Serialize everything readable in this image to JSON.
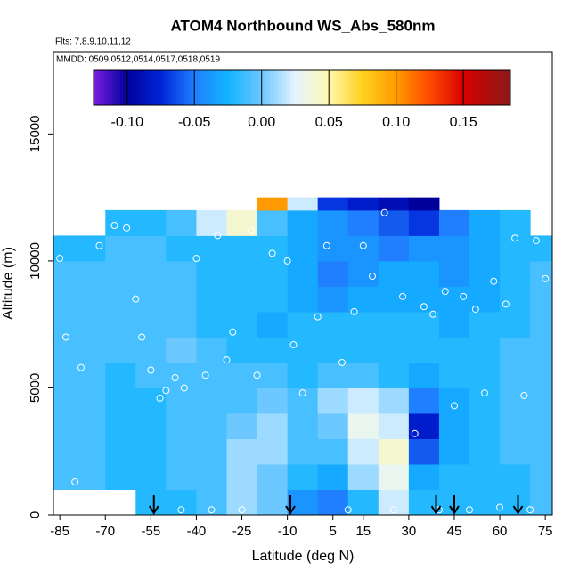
{
  "chart_data": {
    "type": "heatmap",
    "title": "ATOM4 Northbound WS_Abs_580nm",
    "subtitle": "Flts: 7,8,9,10,11,12",
    "annotation": "MMDD: 0509,0512,0514,0517,0518,0519",
    "x_label": "Latitude (deg N)",
    "y_label": "Altitude (m)",
    "xlim": [
      -87.1,
      77.3
    ],
    "ylim": [
      0,
      18240
    ],
    "xticks": [
      -85,
      -70,
      -55,
      -40,
      -25,
      -10,
      5,
      15,
      30,
      45,
      60,
      75
    ],
    "yticks": [
      0,
      5000,
      10000,
      15000
    ],
    "x_edges": [
      -87,
      -80,
      -70,
      -60,
      -50,
      -40,
      -30,
      -20,
      -10,
      0,
      10,
      20,
      30,
      40,
      50,
      60,
      70,
      77
    ],
    "y_edges": [
      0,
      1000,
      2000,
      3000,
      4000,
      5000,
      6000,
      7000,
      8000,
      9000,
      10000,
      11000,
      12000,
      12500
    ],
    "z": [
      [
        null,
        null,
        null,
        -0.02,
        -0.02,
        -0.01,
        0.01,
        0.0,
        -0.04,
        -0.05,
        -0.02,
        0.02,
        -0.02,
        -0.02,
        -0.02,
        -0.02,
        -0.01
      ],
      [
        -0.01,
        -0.01,
        -0.02,
        -0.02,
        -0.01,
        -0.01,
        0.01,
        0.0,
        -0.02,
        -0.03,
        0.01,
        0.03,
        -0.03,
        -0.02,
        -0.02,
        -0.02,
        -0.01
      ],
      [
        -0.01,
        -0.01,
        -0.02,
        -0.02,
        -0.01,
        -0.01,
        0.01,
        0.01,
        -0.01,
        -0.01,
        0.02,
        0.04,
        -0.06,
        -0.03,
        -0.02,
        -0.01,
        -0.01
      ],
      [
        -0.01,
        -0.01,
        -0.02,
        -0.02,
        -0.01,
        -0.01,
        0.0,
        0.01,
        -0.01,
        0.0,
        0.03,
        0.02,
        -0.08,
        -0.03,
        -0.02,
        -0.01,
        -0.01
      ],
      [
        -0.01,
        -0.01,
        -0.02,
        -0.02,
        -0.01,
        -0.01,
        -0.01,
        0.0,
        -0.01,
        0.01,
        0.02,
        0.01,
        -0.05,
        -0.03,
        -0.02,
        -0.01,
        -0.01
      ],
      [
        -0.01,
        -0.01,
        -0.02,
        -0.01,
        -0.01,
        -0.01,
        -0.01,
        -0.01,
        -0.02,
        -0.01,
        -0.01,
        -0.02,
        -0.03,
        -0.02,
        -0.02,
        -0.01,
        -0.01
      ],
      [
        -0.01,
        -0.01,
        -0.01,
        -0.01,
        0.0,
        -0.01,
        -0.02,
        -0.02,
        -0.02,
        -0.02,
        -0.02,
        -0.02,
        -0.02,
        -0.02,
        -0.02,
        -0.01,
        -0.01
      ],
      [
        -0.01,
        -0.01,
        -0.01,
        -0.01,
        -0.01,
        -0.02,
        -0.02,
        -0.03,
        -0.02,
        -0.02,
        -0.02,
        -0.02,
        -0.02,
        -0.03,
        -0.02,
        -0.02,
        -0.01
      ],
      [
        -0.01,
        -0.01,
        -0.01,
        -0.01,
        -0.01,
        -0.02,
        -0.02,
        -0.02,
        -0.03,
        -0.04,
        -0.03,
        -0.03,
        -0.03,
        -0.03,
        -0.03,
        -0.02,
        -0.01
      ],
      [
        -0.01,
        -0.01,
        -0.01,
        -0.01,
        -0.01,
        -0.02,
        -0.02,
        -0.02,
        -0.03,
        -0.05,
        -0.04,
        -0.03,
        -0.03,
        -0.04,
        -0.03,
        -0.02,
        -0.01
      ],
      [
        -0.02,
        -0.02,
        -0.01,
        -0.01,
        -0.02,
        -0.02,
        -0.02,
        -0.02,
        -0.03,
        -0.04,
        -0.04,
        -0.05,
        -0.04,
        -0.04,
        -0.03,
        -0.02,
        -0.02
      ],
      [
        null,
        null,
        -0.02,
        -0.02,
        -0.01,
        0.02,
        0.04,
        -0.01,
        -0.03,
        -0.04,
        -0.05,
        -0.06,
        -0.07,
        -0.05,
        -0.03,
        -0.02,
        null
      ],
      [
        null,
        null,
        null,
        null,
        null,
        null,
        null,
        0.1,
        0.02,
        -0.07,
        -0.08,
        -0.09,
        -0.1,
        null,
        null,
        null,
        null
      ]
    ],
    "colorbar_lim": [
      -0.125,
      0.185
    ],
    "colorbar_ticks": [
      {
        "value": -0.1,
        "label": "-0.10"
      },
      {
        "value": -0.05,
        "label": "-0.05"
      },
      {
        "value": 0,
        "label": "0.00"
      },
      {
        "value": 0.05,
        "label": "0.05"
      },
      {
        "value": 0.1,
        "label": "0.10"
      },
      {
        "value": 0.15,
        "label": "0.15"
      }
    ],
    "colormap": [
      {
        "value": -0.125,
        "color": "#7b1fe0"
      },
      {
        "value": -0.1,
        "color": "#00009a"
      },
      {
        "value": -0.075,
        "color": "#0024d8"
      },
      {
        "value": -0.05,
        "color": "#1f7fff"
      },
      {
        "value": -0.025,
        "color": "#12b4ff"
      },
      {
        "value": 0,
        "color": "#6cc8ff"
      },
      {
        "value": 0.025,
        "color": "#e4f4ff"
      },
      {
        "value": 0.05,
        "color": "#fff7b0"
      },
      {
        "value": 0.075,
        "color": "#ffd21e"
      },
      {
        "value": 0.1,
        "color": "#ff9a00"
      },
      {
        "value": 0.125,
        "color": "#ff4a00"
      },
      {
        "value": 0.15,
        "color": "#d80000"
      },
      {
        "value": 0.185,
        "color": "#8a1a1a"
      }
    ],
    "points_x": [
      -85,
      -83,
      -78,
      -75,
      -72,
      -67,
      -63,
      -60,
      -58,
      -55,
      -52,
      -50,
      -47,
      -44,
      -40,
      -37,
      -33,
      -30,
      -28,
      -22,
      -20,
      -15,
      -10,
      -8,
      -5,
      0,
      3,
      8,
      12,
      15,
      18,
      22,
      28,
      32,
      35,
      38,
      42,
      45,
      48,
      52,
      55,
      58,
      62,
      65,
      68,
      72,
      75,
      -80,
      -70,
      -45,
      -35,
      -25,
      10,
      25,
      40,
      50,
      60,
      70
    ],
    "points_y": [
      10100,
      7000,
      5800,
      11300,
      10600,
      11400,
      11300,
      8500,
      7000,
      5700,
      4600,
      4900,
      5400,
      5000,
      10100,
      5500,
      11000,
      6100,
      7200,
      11200,
      5500,
      10300,
      10000,
      6700,
      4800,
      7800,
      10600,
      6000,
      8000,
      10600,
      9400,
      11900,
      8600,
      3200,
      8200,
      7900,
      8800,
      4300,
      8600,
      8100,
      4800,
      9200,
      8300,
      10900,
      4700,
      10800,
      9300,
      1300,
      200,
      200,
      200,
      200,
      200,
      200,
      200,
      200,
      300,
      200
    ],
    "arrows_x": [
      -54,
      -9,
      39,
      45,
      66
    ]
  }
}
